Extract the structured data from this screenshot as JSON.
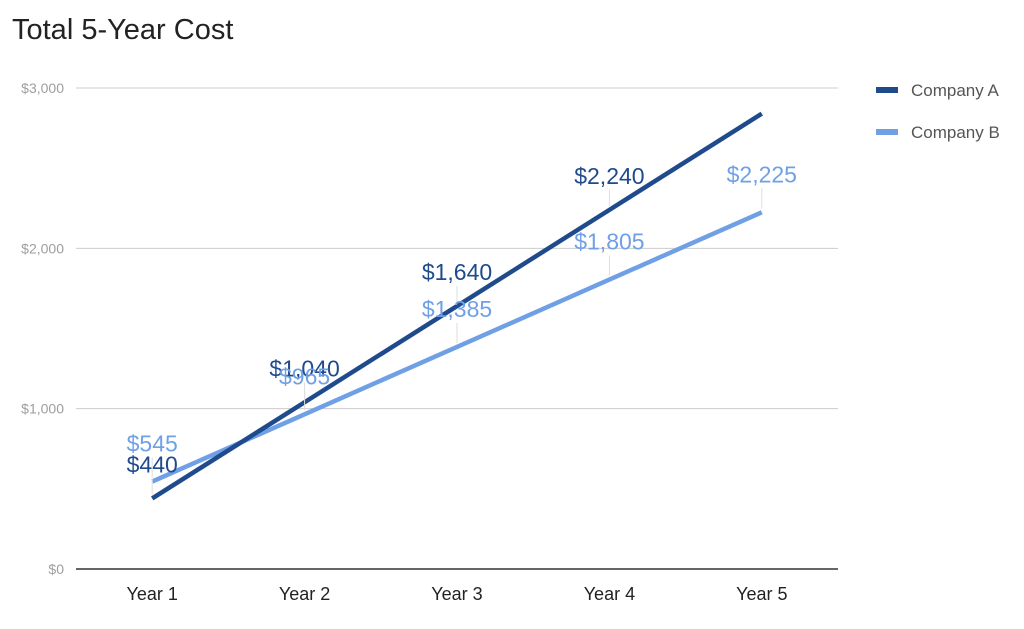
{
  "chart_data": {
    "type": "line",
    "title": "Total 5-Year Cost",
    "xlabel": "",
    "ylabel": "",
    "categories": [
      "Year 1",
      "Year 2",
      "Year 3",
      "Year 4",
      "Year 5"
    ],
    "ylim": [
      0,
      3000
    ],
    "yticks": [
      0,
      1000,
      2000,
      3000
    ],
    "ytick_labels": [
      "$0",
      "$1,000",
      "$2,000",
      "$3,000"
    ],
    "grid": true,
    "legend_position": "right",
    "series": [
      {
        "name": "Company A",
        "color": "#1f4a8c",
        "values": [
          440,
          1040,
          1640,
          2240,
          2840
        ],
        "labels": [
          "$440",
          "$1,040",
          "$1,640",
          "$2,240",
          ""
        ]
      },
      {
        "name": "Company B",
        "color": "#6fa0e6",
        "values": [
          545,
          965,
          1385,
          1805,
          2225
        ],
        "labels": [
          "$545",
          "$965",
          "$1,385",
          "$1,805",
          "$2,225"
        ]
      }
    ]
  }
}
